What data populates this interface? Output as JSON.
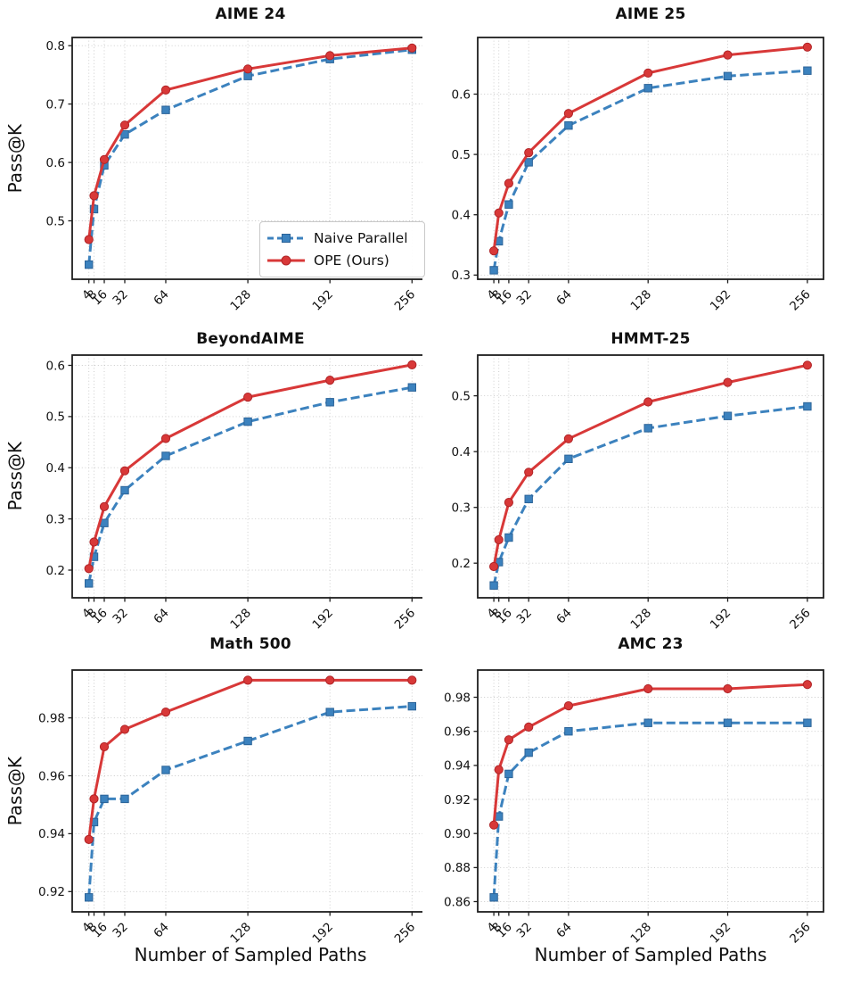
{
  "figure": {
    "xlabel": "Number of Sampled Paths",
    "ylabel": "Pass@K",
    "xlim": [
      -9,
      269
    ],
    "x_tick_values": [
      4,
      8,
      16,
      32,
      64,
      128,
      192,
      256
    ],
    "x_tick_labels": [
      "4",
      "8",
      "16",
      "32",
      "64",
      "128",
      "192",
      "256"
    ],
    "grid": true,
    "legend_position": "lower right of first subplot",
    "series_styles": [
      {
        "name": "Naive Parallel",
        "color": "#3c82be",
        "edge": "#2b6398",
        "dash": "10 4.5",
        "marker": "square",
        "line": "dashed"
      },
      {
        "name": "OPE (Ours)",
        "color": "#d83838",
        "edge": "#b02427",
        "dash": "",
        "marker": "circle",
        "line": "solid"
      }
    ]
  },
  "chart_data": [
    {
      "type": "line",
      "title": "AIME 24",
      "ylabel": "Pass@K",
      "xlabel": "",
      "legend": true,
      "x": [
        4,
        8,
        16,
        32,
        64,
        128,
        192,
        256
      ],
      "series": [
        {
          "name": "Naive Parallel",
          "values": [
            0.425,
            0.52,
            0.595,
            0.648,
            0.69,
            0.748,
            0.777,
            0.793
          ]
        },
        {
          "name": "OPE (Ours)",
          "values": [
            0.468,
            0.543,
            0.605,
            0.664,
            0.724,
            0.76,
            0.783,
            0.796
          ]
        }
      ],
      "ylim": [
        0.4,
        0.814
      ],
      "y_tick_values": [
        0.5,
        0.6,
        0.7,
        0.8
      ],
      "y_tick_labels": [
        "0.5",
        "0.6",
        "0.7",
        "0.8"
      ]
    },
    {
      "type": "line",
      "title": "AIME 25",
      "ylabel": "",
      "xlabel": "",
      "legend": false,
      "x": [
        4,
        8,
        16,
        32,
        64,
        128,
        192,
        256
      ],
      "series": [
        {
          "name": "Naive Parallel",
          "values": [
            0.308,
            0.356,
            0.417,
            0.487,
            0.548,
            0.61,
            0.63,
            0.639
          ]
        },
        {
          "name": "OPE (Ours)",
          "values": [
            0.34,
            0.403,
            0.452,
            0.503,
            0.568,
            0.635,
            0.665,
            0.678
          ]
        }
      ],
      "ylim": [
        0.293,
        0.694
      ],
      "y_tick_values": [
        0.3,
        0.4,
        0.5,
        0.6
      ],
      "y_tick_labels": [
        "0.3",
        "0.4",
        "0.5",
        "0.6"
      ]
    },
    {
      "type": "line",
      "title": "BeyondAIME",
      "ylabel": "Pass@K",
      "xlabel": "",
      "legend": false,
      "x": [
        4,
        8,
        16,
        32,
        64,
        128,
        192,
        256
      ],
      "series": [
        {
          "name": "Naive Parallel",
          "values": [
            0.174,
            0.226,
            0.292,
            0.356,
            0.423,
            0.49,
            0.528,
            0.557
          ]
        },
        {
          "name": "OPE (Ours)",
          "values": [
            0.203,
            0.255,
            0.324,
            0.394,
            0.457,
            0.538,
            0.571,
            0.601
          ]
        }
      ],
      "ylim": [
        0.146,
        0.62
      ],
      "y_tick_values": [
        0.2,
        0.3,
        0.4,
        0.5,
        0.6
      ],
      "y_tick_labels": [
        "0.2",
        "0.3",
        "0.4",
        "0.5",
        "0.6"
      ]
    },
    {
      "type": "line",
      "title": "HMMT-25",
      "ylabel": "",
      "xlabel": "",
      "legend": false,
      "x": [
        4,
        8,
        16,
        32,
        64,
        128,
        192,
        256
      ],
      "series": [
        {
          "name": "Naive Parallel",
          "values": [
            0.16,
            0.202,
            0.246,
            0.315,
            0.387,
            0.442,
            0.464,
            0.481
          ]
        },
        {
          "name": "OPE (Ours)",
          "values": [
            0.194,
            0.242,
            0.309,
            0.363,
            0.423,
            0.489,
            0.524,
            0.555
          ]
        }
      ],
      "ylim": [
        0.138,
        0.573
      ],
      "y_tick_values": [
        0.2,
        0.3,
        0.4,
        0.5
      ],
      "y_tick_labels": [
        "0.2",
        "0.3",
        "0.4",
        "0.5"
      ]
    },
    {
      "type": "line",
      "title": "Math 500",
      "ylabel": "Pass@K",
      "xlabel": "Number of Sampled Paths",
      "legend": false,
      "x": [
        4,
        8,
        16,
        32,
        64,
        128,
        192,
        256
      ],
      "series": [
        {
          "name": "Naive Parallel",
          "values": [
            0.918,
            0.944,
            0.952,
            0.952,
            0.962,
            0.972,
            0.982,
            0.984
          ]
        },
        {
          "name": "OPE (Ours)",
          "values": [
            0.938,
            0.952,
            0.97,
            0.976,
            0.982,
            0.993,
            0.993,
            0.993
          ]
        }
      ],
      "ylim": [
        0.913,
        0.9965
      ],
      "y_tick_values": [
        0.92,
        0.94,
        0.96,
        0.98
      ],
      "y_tick_labels": [
        "0.92",
        "0.94",
        "0.96",
        "0.98"
      ]
    },
    {
      "type": "line",
      "title": "AMC 23",
      "ylabel": "",
      "xlabel": "Number of Sampled Paths",
      "legend": false,
      "x": [
        4,
        8,
        16,
        32,
        64,
        128,
        192,
        256
      ],
      "series": [
        {
          "name": "Naive Parallel",
          "values": [
            0.8625,
            0.91,
            0.935,
            0.9475,
            0.96,
            0.965,
            0.965,
            0.965
          ]
        },
        {
          "name": "OPE (Ours)",
          "values": [
            0.905,
            0.9375,
            0.955,
            0.9625,
            0.975,
            0.985,
            0.985,
            0.9875
          ]
        }
      ],
      "ylim": [
        0.854,
        0.996
      ],
      "y_tick_values": [
        0.86,
        0.88,
        0.9,
        0.92,
        0.94,
        0.96,
        0.98
      ],
      "y_tick_labels": [
        "0.86",
        "0.88",
        "0.90",
        "0.92",
        "0.94",
        "0.96",
        "0.98"
      ]
    }
  ]
}
